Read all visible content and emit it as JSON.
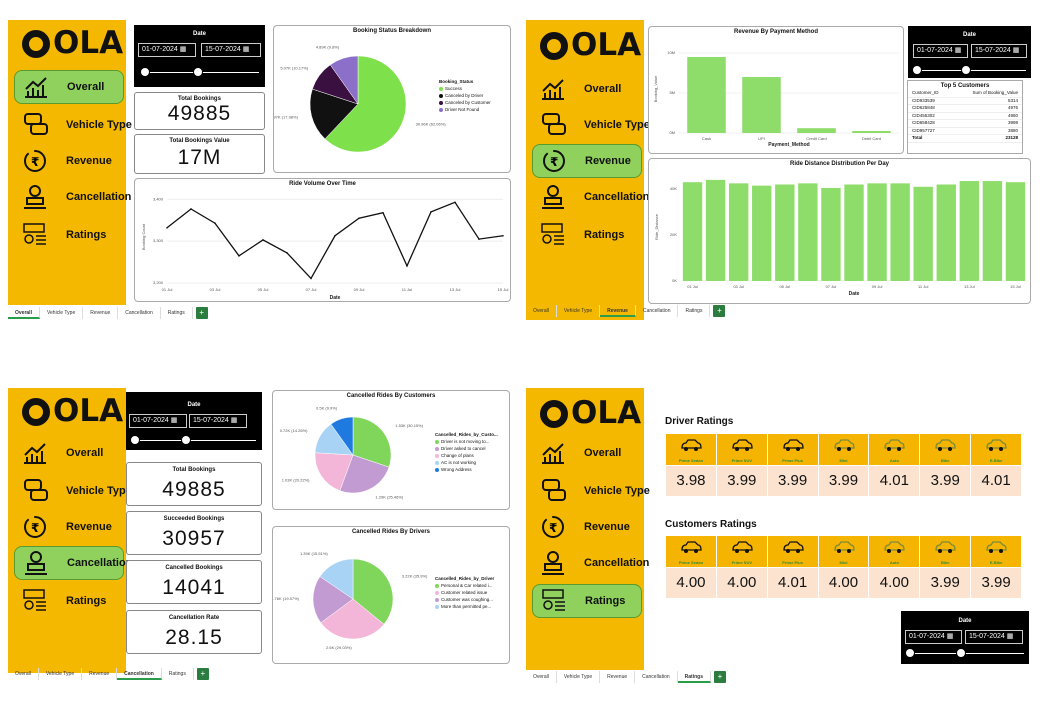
{
  "brand": {
    "logo_text": "OLA"
  },
  "nav_items": [
    "Overall",
    "Vehicle Type",
    "Revenue",
    "Cancellation",
    "Ratings"
  ],
  "tabs": [
    "Overall",
    "Vehicle Type",
    "Revenue",
    "Cancellation",
    "Ratings"
  ],
  "tab_plus": "+",
  "date_filter": {
    "title": "Date",
    "start": "01-07-2024",
    "end": "15-07-2024",
    "calendar_glyph": "▦"
  },
  "overall": {
    "total_bookings_label": "Total Bookings",
    "total_bookings": "49885",
    "total_value_label": "Total Bookings Value",
    "total_value": "17M",
    "pie": {
      "title": "Booking Status Breakdown",
      "legend_title": "Booking_Status",
      "slices": [
        {
          "name": "Success",
          "value": 30.96,
          "label": "30.96K (62.06%)",
          "color": "#7ee04a"
        },
        {
          "name": "Canceled by Driver",
          "value": 8.97,
          "label": "8.97K (17.98%)",
          "color": "#111111"
        },
        {
          "name": "Canceled by Customer",
          "value": 5.07,
          "label": "5.07K (10.17%)",
          "color": "#3a1040"
        },
        {
          "name": "Driver Not Found",
          "value": 4.89,
          "label": "4.89K (9.8%)",
          "color": "#8c6fc9"
        }
      ]
    },
    "line": {
      "title": "Ride Volume Over Time",
      "ylabel": "Booking Count",
      "xlabel": "Date",
      "yticks": [
        "3,400",
        "3,300",
        "3,200"
      ],
      "xticks": [
        "01 Jul",
        "03 Jul",
        "05 Jul",
        "07 Jul",
        "09 Jul",
        "11 Jul",
        "13 Jul",
        "15 Jul"
      ],
      "values": [
        3332,
        3377,
        3343,
        3265,
        3303,
        3272,
        3211,
        3313,
        3355,
        3368,
        3241,
        3370,
        3393,
        3305,
        3313
      ]
    }
  },
  "revenue": {
    "bar": {
      "title": "Revenue By Payment Method",
      "ylabel": "Booking_Value",
      "xlabel": "Payment_Method",
      "yticks": [
        "10M",
        "5M",
        "0M"
      ],
      "categories": [
        "Cash",
        "UPI",
        "Credit Card",
        "Debit Card"
      ],
      "values": [
        9.5,
        7.0,
        0.6,
        0.25
      ]
    },
    "top5": {
      "title": "Top 5 Customers",
      "col1": "Customer_ID",
      "col2": "Sum of Booking_Value",
      "rows": [
        [
          "CID933539",
          "5314"
        ],
        [
          "CID625848",
          "4976"
        ],
        [
          "CID455302",
          "4960"
        ],
        [
          "CID658428",
          "3998"
        ],
        [
          "CID957727",
          "3880"
        ]
      ],
      "total_label": "Total",
      "total": "23128"
    },
    "dist": {
      "title": "Ride Distance Distribution Per Day",
      "ylabel": "Ride_Distance",
      "xlabel": "Date",
      "yticks": [
        "40K",
        "20K",
        "0K"
      ],
      "xticks": [
        "01 Jul",
        "03 Jul",
        "05 Jul",
        "07 Jul",
        "09 Jul",
        "11 Jul",
        "13 Jul",
        "15 Jul"
      ],
      "values": [
        43,
        44,
        42.5,
        41.5,
        42,
        42.5,
        40.5,
        42,
        42.5,
        42.5,
        41,
        42,
        43.5,
        43.5,
        43
      ]
    }
  },
  "cancellation": {
    "cards": [
      {
        "label": "Total Bookings",
        "value": "49885"
      },
      {
        "label": "Succeeded Bookings",
        "value": "30957"
      },
      {
        "label": "Cancelled Bookings",
        "value": "14041"
      },
      {
        "label": "Cancellation Rate",
        "value": "28.15"
      }
    ],
    "pie_customers": {
      "title": "Cancelled Rides By Customers",
      "legend_title": "Cancelled_Rides_by_Custo...",
      "slices": [
        {
          "name": "Driver is not moving to...",
          "value": 1.53,
          "label": "1.53K (30.15%)",
          "color": "#7fd65a"
        },
        {
          "name": "Driver asked to cancel",
          "value": 1.29,
          "label": "1.29K (25.46%)",
          "color": "#c39bd3"
        },
        {
          "name": "Change of plans",
          "value": 1.03,
          "label": "1.03K (20.22%)",
          "color": "#f4b6d8"
        },
        {
          "name": "AC is not working",
          "value": 0.72,
          "label": "0.72K (14.26%)",
          "color": "#a9d3f5"
        },
        {
          "name": "Wrong Address",
          "value": 0.5,
          "label": "0.5K (9.9%)",
          "color": "#1f7ae0"
        }
      ]
    },
    "pie_drivers": {
      "title": "Cancelled Rides By Drivers",
      "legend_title": "Cancelled_Rides_by_Driver",
      "slices": [
        {
          "name": "Personal & Car related i...",
          "value": 3.22,
          "label": "3.22K (35.9%)",
          "color": "#7fd65a"
        },
        {
          "name": "Customer related issue",
          "value": 2.6,
          "label": "2.6K (29.03%)",
          "color": "#f4b6d8"
        },
        {
          "name": "Customer was coughing...",
          "value": 1.76,
          "label": "1.76K (19.57%)",
          "color": "#c39bd3"
        },
        {
          "name": "More than permitted pe...",
          "value": 1.39,
          "label": "1.39K (15.51%)",
          "color": "#a9d3f5"
        }
      ]
    }
  },
  "ratings": {
    "vehicles": [
      "Prime Sedan",
      "Prime SUV",
      "Prime Plus",
      "Mini",
      "Auto",
      "Bike",
      "E-Bike"
    ],
    "driver_title": "Driver Ratings",
    "driver": [
      "3.98",
      "3.99",
      "3.99",
      "3.99",
      "4.01",
      "3.99",
      "4.01"
    ],
    "customer_title": "Customers Ratings",
    "customer": [
      "4.00",
      "4.00",
      "4.01",
      "4.00",
      "4.00",
      "3.99",
      "3.99"
    ]
  },
  "colors": {
    "brand_yellow": "#f5b800",
    "active_green": "#8fd15c",
    "bar_green": "#8edc6a",
    "tab_plus_green": "#2a7d3f"
  },
  "icons": [
    "trend-chart-icon",
    "cars-icon",
    "rupee-icon",
    "driver-icon",
    "ratings-icon"
  ]
}
